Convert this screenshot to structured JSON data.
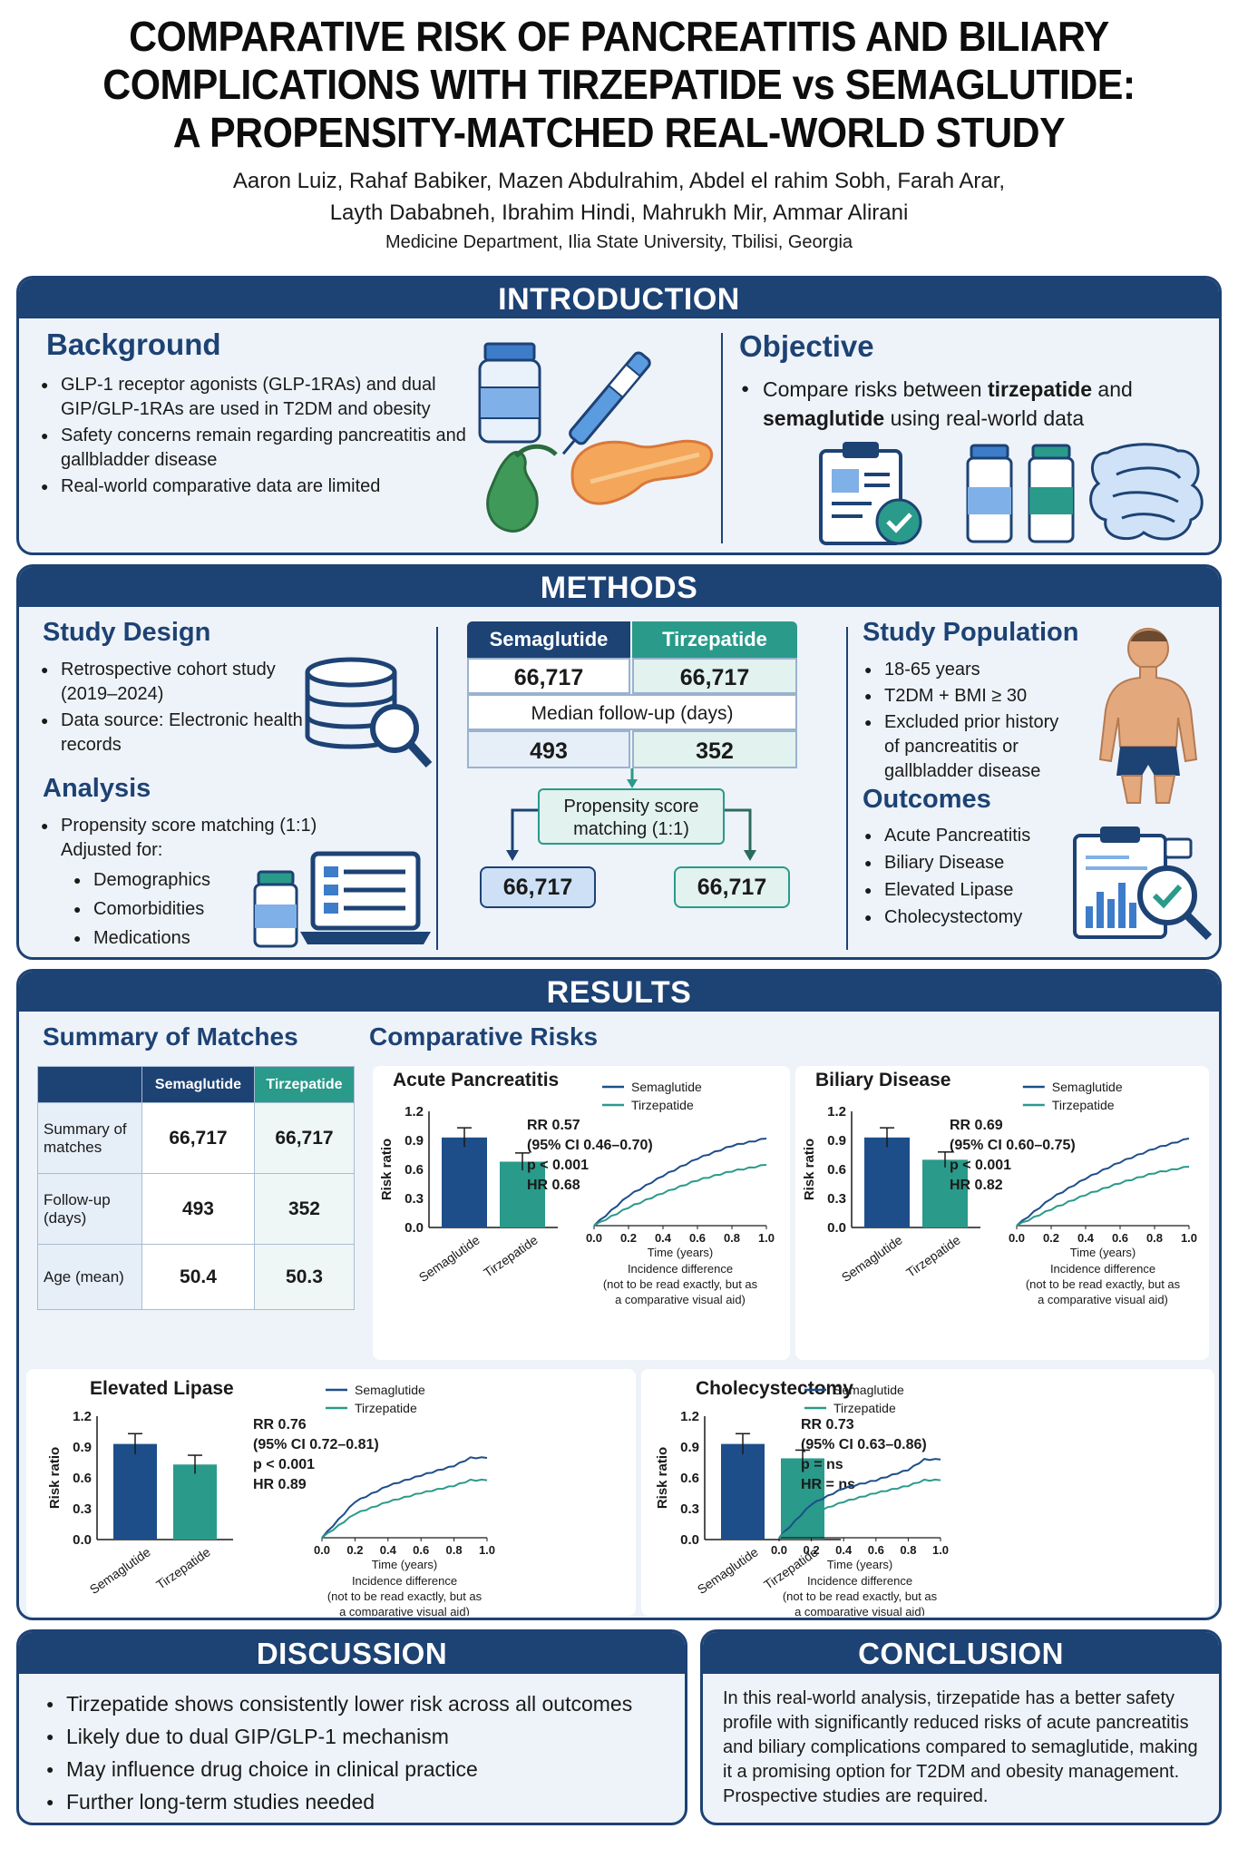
{
  "header": {
    "title_lines": [
      "COMPARATIVE RISK OF PANCREATITIS AND BILIARY",
      "COMPLICATIONS WITH TIRZEPATIDE vs SEMAGLUTIDE:",
      "A PROPENSITY-MATCHED REAL-WORLD STUDY"
    ],
    "authors_lines": [
      "Aaron Luiz, Rahaf Babiker, Mazen Abdulrahim, Abdel el rahim Sobh, Farah Arar,",
      "Layth Dababneh, Ibrahim Hindi, Mahrukh Mir, Ammar Alirani"
    ],
    "affiliation": "Medicine Department, Ilia State University, Tbilisi, Georgia"
  },
  "colors": {
    "navy": "#1d4274",
    "semaglutide": "#1d4e89",
    "tirzepatide": "#2a9a8a",
    "panel_bg": "#eef3f9"
  },
  "introduction": {
    "heading": "INTRODUCTION",
    "background": {
      "title": "Background",
      "items": [
        "GLP-1 receptor agonists (GLP-1RAs) and dual GIP/GLP-1RAs are used in T2DM and obesity",
        "Safety concerns remain regarding pancreatitis and gallbladder disease",
        "Real-world comparative data are limited"
      ]
    },
    "objective": {
      "title": "Objective",
      "text_pre": "Compare risks between ",
      "drug1": "tirzepatide",
      "text_mid": " and ",
      "drug2": "semaglutide",
      "text_post": " using real-world data"
    }
  },
  "methods": {
    "heading": "METHODS",
    "study_design": {
      "title": "Study Design",
      "items": [
        "Retrospective cohort study (2019–2024)",
        "Data source: Electronic health records"
      ]
    },
    "analysis": {
      "title": "Analysis",
      "item": "Propensity score matching (1:1) Adjusted for:",
      "subitems": [
        "Demographics",
        "Comorbidities",
        "Medications"
      ]
    },
    "flow": {
      "sema_label": "Semaglutide",
      "tirz_label": "Tirzepatide",
      "sema_n": "66,717",
      "tirz_n": "66,717",
      "followup_label": "Median follow-up (days)",
      "sema_followup": "493",
      "tirz_followup": "352",
      "psm_label": "Propensity score matching (1:1)",
      "matched_left": "66,717",
      "matched_right": "66,717"
    },
    "population": {
      "title": "Study Population",
      "items": [
        "18-65 years",
        "T2DM + BMI ≥ 30",
        "Excluded prior history of pancreatitis or gallbladder disease"
      ]
    },
    "outcomes": {
      "title": "Outcomes",
      "items": [
        "Acute Pancreatitis",
        "Biliary Disease",
        "Elevated Lipase",
        "Cholecystectomy"
      ]
    }
  },
  "results": {
    "heading": "RESULTS",
    "summary_title": "Summary of Matches",
    "comparative_title": "Comparative Risks",
    "table": {
      "headers": [
        "",
        "Semaglutide",
        "Tirzepatide"
      ],
      "rows": [
        [
          "Summary of matches",
          "66,717",
          "66,717"
        ],
        [
          "Follow-up (days)",
          "493",
          "352"
        ],
        [
          "Age (mean)",
          "50.4",
          "50.3"
        ]
      ]
    },
    "chart_common": {
      "ylabel": "Risk ratio",
      "yticks": [
        "1.2",
        "0.9",
        "0.6",
        "0.3",
        "0.0"
      ],
      "xticks": [
        "0.0",
        "0.2",
        "0.4",
        "0.6",
        "0.8",
        "1.0"
      ],
      "categories": [
        "Semaglutide",
        "Tirzepatide"
      ],
      "legend": [
        "Semaglutide",
        "Tirzepatide"
      ],
      "xlabel": "Time (years)",
      "caption_lines": [
        "Incidence difference",
        "(not to be read exactly, but as",
        "a comparative visual aid)"
      ]
    }
  },
  "chart_data": [
    {
      "type": "bar",
      "title": "Acute Pancreatitis",
      "categories": [
        "Semaglutide",
        "Tirzepatide"
      ],
      "values": [
        0.93,
        0.68
      ],
      "error": [
        0.1,
        0.09
      ],
      "ylim": [
        0,
        1.2
      ],
      "ylabel": "Risk ratio",
      "stats": [
        "RR 0.57",
        "(95% CI 0.46–0.70)",
        "p < 0.001",
        "HR 0.68"
      ],
      "curves": {
        "x": [
          0.0,
          0.2,
          0.4,
          0.6,
          0.8,
          1.0
        ],
        "series": [
          {
            "name": "Semaglutide",
            "values": [
              0.0,
              0.33,
              0.55,
              0.74,
              0.88,
              0.96
            ]
          },
          {
            "name": "Tirzepatide",
            "values": [
              0.0,
              0.2,
              0.36,
              0.5,
              0.6,
              0.67
            ]
          }
        ]
      }
    },
    {
      "type": "bar",
      "title": "Biliary Disease",
      "categories": [
        "Semaglutide",
        "Tirzepatide"
      ],
      "values": [
        0.93,
        0.7
      ],
      "error": [
        0.1,
        0.08
      ],
      "ylim": [
        0,
        1.2
      ],
      "ylabel": "Risk ratio",
      "stats": [
        "RR 0.69",
        "(95% CI 0.60–0.75)",
        "p < 0.001",
        "HR 0.82"
      ],
      "curves": {
        "x": [
          0.0,
          0.2,
          0.4,
          0.6,
          0.8,
          1.0
        ],
        "series": [
          {
            "name": "Semaglutide",
            "values": [
              0.0,
              0.3,
              0.52,
              0.7,
              0.85,
              0.96
            ]
          },
          {
            "name": "Tirzepatide",
            "values": [
              0.0,
              0.18,
              0.34,
              0.47,
              0.58,
              0.65
            ]
          }
        ]
      }
    },
    {
      "type": "bar",
      "title": "Elevated Lipase",
      "categories": [
        "Semaglutide",
        "Tirzepatide"
      ],
      "values": [
        0.93,
        0.73
      ],
      "error": [
        0.1,
        0.09
      ],
      "ylim": [
        0,
        1.2
      ],
      "ylabel": "Risk ratio",
      "stats": [
        "RR 0.76",
        "(95% CI 0.72–0.81)",
        "p < 0.001",
        "HR 0.89"
      ],
      "curves": {
        "x": [
          0.0,
          0.2,
          0.4,
          0.6,
          0.8,
          0.9,
          1.0
        ],
        "series": [
          {
            "name": "Semaglutide",
            "values": [
              0.0,
              0.45,
              0.65,
              0.78,
              0.9,
              1.0,
              1.0
            ]
          },
          {
            "name": "Tirzepatide",
            "values": [
              0.0,
              0.3,
              0.45,
              0.56,
              0.65,
              0.72,
              0.72
            ]
          }
        ]
      }
    },
    {
      "type": "bar",
      "title": "Cholecystectomy",
      "categories": [
        "Semaglutide",
        "Tirzepatide"
      ],
      "values": [
        0.93,
        0.79
      ],
      "error": [
        0.1,
        0.08
      ],
      "ylim": [
        0,
        1.2
      ],
      "ylabel": "Risk ratio",
      "stats": [
        "RR 0.73",
        "(95% CI 0.63–0.86)",
        "p = ns",
        "HR = ns"
      ],
      "curves": {
        "x": [
          0.0,
          0.2,
          0.4,
          0.6,
          0.8,
          0.9,
          1.0
        ],
        "series": [
          {
            "name": "Semaglutide",
            "values": [
              0.0,
              0.42,
              0.62,
              0.72,
              0.85,
              0.98,
              0.98
            ]
          },
          {
            "name": "Tirzepatide",
            "values": [
              0.0,
              0.3,
              0.45,
              0.56,
              0.65,
              0.72,
              0.72
            ]
          }
        ]
      }
    }
  ],
  "discussion": {
    "heading": "DISCUSSION",
    "items": [
      "Tirzepatide shows consistently lower risk across all outcomes",
      "Likely due to dual GIP/GLP-1 mechanism",
      "May influence drug choice in clinical practice",
      "Further long-term studies needed"
    ]
  },
  "conclusion": {
    "heading": "CONCLUSION",
    "text": "In this real-world analysis, tirzepatide has a better safety profile with significantly reduced risks of acute pancreatitis and biliary complications compared to semaglutide, making it a promising option for T2DM and obesity management. Prospective studies are required."
  }
}
